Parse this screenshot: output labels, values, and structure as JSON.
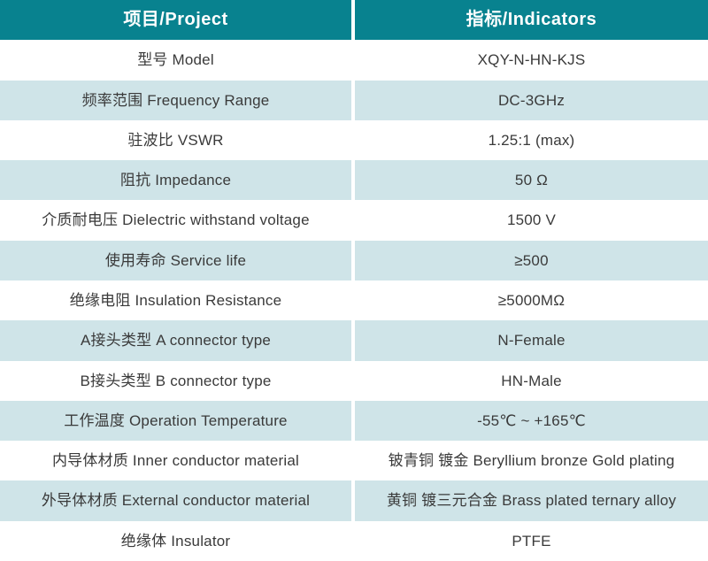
{
  "colors": {
    "header_bg": "#08828F",
    "header_text": "#FFFFFF",
    "row_alt_bg": "#CFE4E8",
    "row_bg": "#FFFFFF",
    "body_text": "#3A3A3A"
  },
  "table": {
    "headers": {
      "project": "项目/Project",
      "indicators": "指标/Indicators"
    },
    "rows": [
      {
        "project": "型号 Model",
        "indicator": "XQY-N-HN-KJS"
      },
      {
        "project": "频率范围 Frequency Range",
        "indicator": "DC-3GHz"
      },
      {
        "project": "驻波比 VSWR",
        "indicator": "1.25:1 (max)"
      },
      {
        "project": "阻抗 Impedance",
        "indicator": "50 Ω"
      },
      {
        "project": "介质耐电压 Dielectric withstand voltage",
        "indicator": "1500 V"
      },
      {
        "project": "使用寿命 Service life",
        "indicator": "≥500"
      },
      {
        "project": "绝缘电阻 Insulation Resistance",
        "indicator": "≥5000MΩ"
      },
      {
        "project": "A接头类型 A connector type",
        "indicator": "N-Female"
      },
      {
        "project": "B接头类型 B connector type",
        "indicator": "HN-Male"
      },
      {
        "project": "工作温度 Operation Temperature",
        "indicator": "-55℃ ~ +165℃"
      },
      {
        "project": "内导体材质 Inner conductor material",
        "indicator": "铍青铜 镀金 Beryllium bronze Gold plating"
      },
      {
        "project": "外导体材质 External conductor material",
        "indicator": "黄铜 镀三元合金 Brass plated ternary alloy"
      },
      {
        "project": "绝缘体 Insulator",
        "indicator": "PTFE"
      }
    ]
  }
}
